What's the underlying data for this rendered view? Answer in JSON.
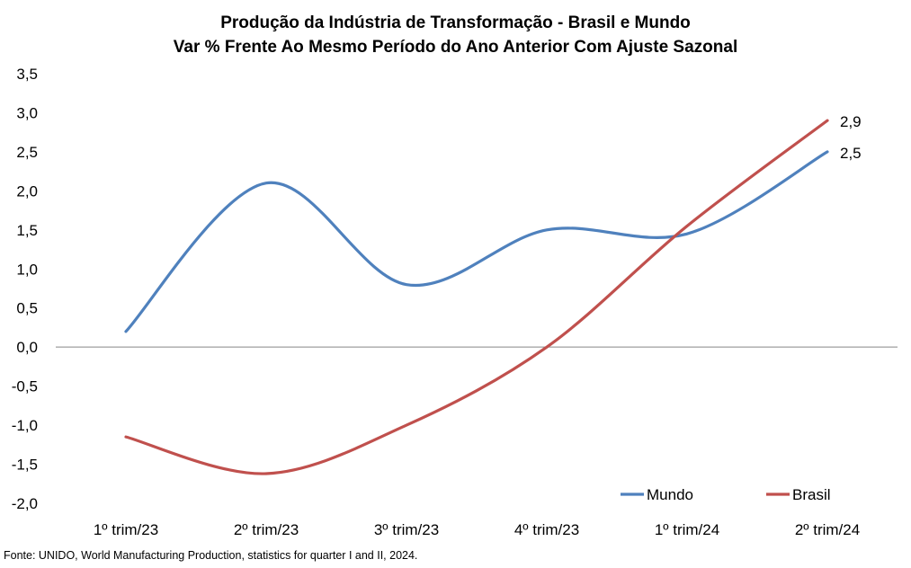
{
  "chart_data": {
    "type": "line",
    "title": "Produção da Indústria de Transformação - Brasil e Mundo",
    "subtitle": "Var % Frente Ao Mesmo Período do Ano Anterior Com Ajuste Sazonal",
    "xlabel": "",
    "ylabel": "",
    "categories": [
      "1º trim/23",
      "2º trim/23",
      "3º trim/23",
      "4º trim/23",
      "1º trim/24",
      "2º trim/24"
    ],
    "ylim": [
      -2.0,
      3.5
    ],
    "yticks": [
      "3,5",
      "3,0",
      "2,5",
      "2,0",
      "1,5",
      "1,0",
      "0,5",
      "0,0",
      "-0,5",
      "-1,0",
      "-1,5",
      "-2,0"
    ],
    "ytick_values": [
      3.5,
      3.0,
      2.5,
      2.0,
      1.5,
      1.0,
      0.5,
      0.0,
      -0.5,
      -1.0,
      -1.5,
      -2.0
    ],
    "grid": false,
    "legend_position": "bottom-right",
    "series": [
      {
        "name": "Mundo",
        "color": "#4F81BD",
        "values": [
          0.2,
          2.1,
          0.8,
          1.5,
          1.45,
          2.5
        ],
        "end_label": "2,5"
      },
      {
        "name": "Brasil",
        "color": "#C0504D",
        "values": [
          -1.15,
          -1.62,
          -1.0,
          0.0,
          1.55,
          2.9
        ],
        "end_label": "2,9"
      }
    ]
  },
  "source": "Fonte: UNIDO, World Manufacturing Production,  statistics for quarter I and II, 2024."
}
